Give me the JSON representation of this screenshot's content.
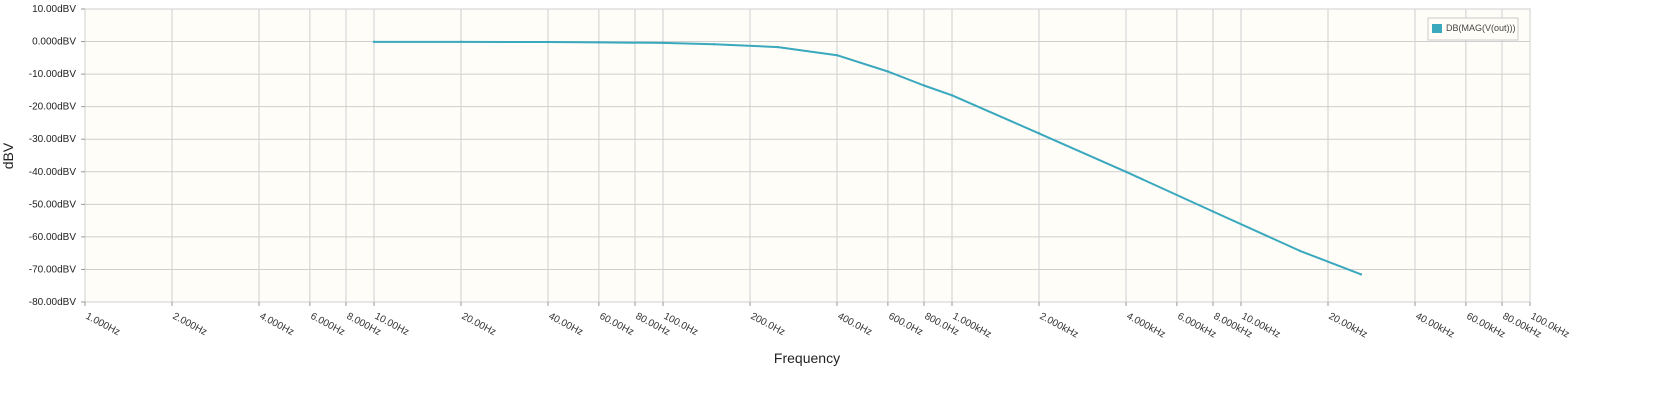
{
  "chart_data": {
    "type": "line",
    "xlabel": "Frequency",
    "ylabel": "dBV",
    "x_scale": "log",
    "xlim": [
      1,
      100000
    ],
    "ylim": [
      -80,
      10
    ],
    "grid": true,
    "legend_position": "top-right",
    "y_ticks": [
      {
        "value": 10,
        "label": "10.00dBV"
      },
      {
        "value": 0,
        "label": "0.000dBV"
      },
      {
        "value": -10,
        "label": "-10.00dBV"
      },
      {
        "value": -20,
        "label": "-20.00dBV"
      },
      {
        "value": -30,
        "label": "-30.00dBV"
      },
      {
        "value": -40,
        "label": "-40.00dBV"
      },
      {
        "value": -50,
        "label": "-50.00dBV"
      },
      {
        "value": -60,
        "label": "-60.00dBV"
      },
      {
        "value": -70,
        "label": "-70.00dBV"
      },
      {
        "value": -80,
        "label": "-80.00dBV"
      }
    ],
    "x_ticks": [
      {
        "value": 1,
        "label": "1.000Hz"
      },
      {
        "value": 2,
        "label": "2.000Hz"
      },
      {
        "value": 4,
        "label": "4.000Hz"
      },
      {
        "value": 6,
        "label": "6.000Hz"
      },
      {
        "value": 8,
        "label": "8.000Hz"
      },
      {
        "value": 10,
        "label": "10.00Hz"
      },
      {
        "value": 20,
        "label": "20.00Hz"
      },
      {
        "value": 40,
        "label": "40.00Hz"
      },
      {
        "value": 60,
        "label": "60.00Hz"
      },
      {
        "value": 80,
        "label": "80.00Hz"
      },
      {
        "value": 100,
        "label": "100.0Hz"
      },
      {
        "value": 200,
        "label": "200.0Hz"
      },
      {
        "value": 400,
        "label": "400.0Hz"
      },
      {
        "value": 600,
        "label": "600.0Hz"
      },
      {
        "value": 800,
        "label": "800.0Hz"
      },
      {
        "value": 1000,
        "label": "1.000kHz"
      },
      {
        "value": 2000,
        "label": "2.000kHz"
      },
      {
        "value": 4000,
        "label": "4.000kHz"
      },
      {
        "value": 6000,
        "label": "6.000kHz"
      },
      {
        "value": 8000,
        "label": "8.000kHz"
      },
      {
        "value": 10000,
        "label": "10.00kHz"
      },
      {
        "value": 20000,
        "label": "20.00kHz"
      },
      {
        "value": 40000,
        "label": "40.00kHz"
      },
      {
        "value": 60000,
        "label": "60.00kHz"
      },
      {
        "value": 80000,
        "label": "80.00kHz"
      },
      {
        "value": 100000,
        "label": "100.0kHz"
      }
    ],
    "series": [
      {
        "name": "DB(MAG(V(out)))",
        "color": "#3aa8bd",
        "points": [
          {
            "x": 10,
            "y": -0.1
          },
          {
            "x": 20,
            "y": -0.1
          },
          {
            "x": 40,
            "y": -0.15
          },
          {
            "x": 60,
            "y": -0.25
          },
          {
            "x": 100,
            "y": -0.4
          },
          {
            "x": 150,
            "y": -0.8
          },
          {
            "x": 250,
            "y": -1.7
          },
          {
            "x": 400,
            "y": -4.2
          },
          {
            "x": 600,
            "y": -9.2
          },
          {
            "x": 800,
            "y": -13.5
          },
          {
            "x": 1000,
            "y": -16.5
          },
          {
            "x": 2000,
            "y": -28.2
          },
          {
            "x": 4000,
            "y": -40.0
          },
          {
            "x": 8000,
            "y": -52.2
          },
          {
            "x": 16000,
            "y": -64.3
          },
          {
            "x": 26000,
            "y": -71.5
          }
        ]
      }
    ]
  }
}
